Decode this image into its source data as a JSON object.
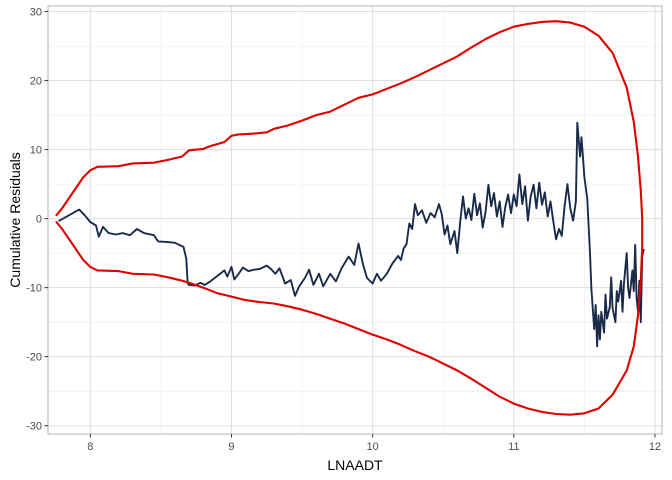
{
  "chart_data": {
    "type": "line",
    "title": "",
    "xlabel": "LNAADT",
    "ylabel": "Cumulative Residuals",
    "xlim": [
      7.7,
      12.05
    ],
    "ylim": [
      -31.2,
      30.8
    ],
    "xticks": [
      8,
      9,
      10,
      11,
      12
    ],
    "yticks": [
      -30,
      -20,
      -10,
      0,
      10,
      20,
      30
    ],
    "xtick_labels": [
      "8",
      "9",
      "10",
      "11",
      "12"
    ],
    "ytick_labels": [
      "-30",
      "-20",
      "-10",
      "0",
      "10",
      "20",
      "30"
    ],
    "grid": true,
    "legend": "none",
    "series": [
      {
        "color": "#1a2b4a",
        "points": [
          [
            7.78,
            -0.3
          ],
          [
            7.85,
            0.5
          ],
          [
            7.92,
            1.3
          ],
          [
            7.96,
            0.5
          ],
          [
            8.0,
            -0.5
          ],
          [
            8.04,
            -1.0
          ],
          [
            8.06,
            -2.6
          ],
          [
            8.09,
            -1.2
          ],
          [
            8.13,
            -2.1
          ],
          [
            8.18,
            -2.3
          ],
          [
            8.23,
            -2.1
          ],
          [
            8.28,
            -2.4
          ],
          [
            8.33,
            -1.5
          ],
          [
            8.38,
            -2.1
          ],
          [
            8.45,
            -2.4
          ],
          [
            8.48,
            -3.3
          ],
          [
            8.55,
            -3.4
          ],
          [
            8.6,
            -3.5
          ],
          [
            8.66,
            -4.1
          ],
          [
            8.68,
            -5.8
          ],
          [
            8.69,
            -9.4
          ],
          [
            8.7,
            -9.6
          ],
          [
            8.74,
            -9.7
          ],
          [
            8.78,
            -9.3
          ],
          [
            8.81,
            -9.6
          ],
          [
            8.85,
            -9.1
          ],
          [
            8.9,
            -8.3
          ],
          [
            8.95,
            -7.5
          ],
          [
            8.97,
            -8.4
          ],
          [
            9.0,
            -7.0
          ],
          [
            9.02,
            -8.8
          ],
          [
            9.05,
            -8.0
          ],
          [
            9.08,
            -7.1
          ],
          [
            9.12,
            -7.6
          ],
          [
            9.16,
            -7.4
          ],
          [
            9.2,
            -7.3
          ],
          [
            9.25,
            -6.8
          ],
          [
            9.28,
            -7.3
          ],
          [
            9.31,
            -8.0
          ],
          [
            9.34,
            -7.2
          ],
          [
            9.38,
            -9.4
          ],
          [
            9.42,
            -8.9
          ],
          [
            9.45,
            -11.2
          ],
          [
            9.48,
            -9.8
          ],
          [
            9.52,
            -8.6
          ],
          [
            9.55,
            -7.4
          ],
          [
            9.58,
            -9.6
          ],
          [
            9.62,
            -8.0
          ],
          [
            9.65,
            -9.8
          ],
          [
            9.7,
            -8.0
          ],
          [
            9.74,
            -9.1
          ],
          [
            9.78,
            -7.2
          ],
          [
            9.83,
            -5.5
          ],
          [
            9.87,
            -6.7
          ],
          [
            9.9,
            -3.6
          ],
          [
            9.93,
            -6.5
          ],
          [
            9.96,
            -8.6
          ],
          [
            10.0,
            -9.4
          ],
          [
            10.03,
            -8.0
          ],
          [
            10.06,
            -9.0
          ],
          [
            10.1,
            -8.0
          ],
          [
            10.14,
            -6.5
          ],
          [
            10.18,
            -5.4
          ],
          [
            10.2,
            -6.0
          ],
          [
            10.22,
            -4.3
          ],
          [
            10.24,
            -3.7
          ],
          [
            10.26,
            -0.7
          ],
          [
            10.28,
            -1.5
          ],
          [
            10.3,
            2.1
          ],
          [
            10.32,
            0.5
          ],
          [
            10.35,
            1.2
          ],
          [
            10.38,
            -0.6
          ],
          [
            10.41,
            0.8
          ],
          [
            10.44,
            0.2
          ],
          [
            10.47,
            2.1
          ],
          [
            10.49,
            0.6
          ],
          [
            10.51,
            -2.3
          ],
          [
            10.53,
            -1.0
          ],
          [
            10.55,
            -3.7
          ],
          [
            10.58,
            -1.8
          ],
          [
            10.6,
            -5.0
          ],
          [
            10.62,
            -0.5
          ],
          [
            10.64,
            3.2
          ],
          [
            10.66,
            0.0
          ],
          [
            10.68,
            1.5
          ],
          [
            10.7,
            -0.2
          ],
          [
            10.72,
            3.6
          ],
          [
            10.74,
            0.5
          ],
          [
            10.76,
            2.2
          ],
          [
            10.78,
            -1.3
          ],
          [
            10.8,
            1.0
          ],
          [
            10.82,
            4.9
          ],
          [
            10.84,
            1.8
          ],
          [
            10.86,
            3.7
          ],
          [
            10.88,
            0.3
          ],
          [
            10.9,
            2.5
          ],
          [
            10.92,
            -1.2
          ],
          [
            10.94,
            1.7
          ],
          [
            10.96,
            3.5
          ],
          [
            10.98,
            0.8
          ],
          [
            11.0,
            3.5
          ],
          [
            11.02,
            1.8
          ],
          [
            11.04,
            6.4
          ],
          [
            11.06,
            2.1
          ],
          [
            11.08,
            4.7
          ],
          [
            11.1,
            -0.3
          ],
          [
            11.12,
            3.2
          ],
          [
            11.14,
            4.9
          ],
          [
            11.16,
            1.5
          ],
          [
            11.18,
            5.2
          ],
          [
            11.2,
            2.0
          ],
          [
            11.22,
            3.8
          ],
          [
            11.24,
            0.3
          ],
          [
            11.26,
            2.5
          ],
          [
            11.28,
            -0.4
          ],
          [
            11.3,
            -3.0
          ],
          [
            11.32,
            -1.5
          ],
          [
            11.34,
            -2.5
          ],
          [
            11.36,
            1.8
          ],
          [
            11.38,
            5.0
          ],
          [
            11.4,
            1.5
          ],
          [
            11.42,
            -0.3
          ],
          [
            11.44,
            2.5
          ],
          [
            11.45,
            13.9
          ],
          [
            11.47,
            9.0
          ],
          [
            11.48,
            11.8
          ],
          [
            11.5,
            6.0
          ],
          [
            11.52,
            3.0
          ],
          [
            11.54,
            -5.0
          ],
          [
            11.55,
            -10.2
          ],
          [
            11.57,
            -16.0
          ],
          [
            11.58,
            -12.5
          ],
          [
            11.59,
            -18.5
          ],
          [
            11.6,
            -14.0
          ],
          [
            11.61,
            -17.5
          ],
          [
            11.62,
            -13.5
          ],
          [
            11.64,
            -16.5
          ],
          [
            11.65,
            -11.0
          ],
          [
            11.66,
            -14.5
          ],
          [
            11.68,
            -12.8
          ],
          [
            11.69,
            -8.5
          ],
          [
            11.7,
            -13.0
          ],
          [
            11.72,
            -15.0
          ],
          [
            11.73,
            -10.5
          ],
          [
            11.74,
            -12.0
          ],
          [
            11.76,
            -9.0
          ],
          [
            11.77,
            -13.5
          ],
          [
            11.78,
            -9.5
          ],
          [
            11.8,
            -5.0
          ],
          [
            11.81,
            -10.0
          ],
          [
            11.82,
            -11.5
          ],
          [
            11.84,
            -7.5
          ],
          [
            11.85,
            -10.5
          ],
          [
            11.86,
            -3.8
          ],
          [
            11.87,
            -11.5
          ],
          [
            11.88,
            -13.5
          ],
          [
            11.89,
            -9.0
          ],
          [
            11.9,
            -15.0
          ],
          [
            11.91,
            -5.5
          ],
          [
            11.92,
            -4.5
          ]
        ]
      },
      {
        "color": "#e00000",
        "points": [
          [
            7.76,
            0.5
          ],
          [
            7.8,
            1.5
          ],
          [
            7.85,
            3.0
          ],
          [
            7.9,
            4.5
          ],
          [
            7.95,
            6.0
          ],
          [
            8.0,
            7.0
          ],
          [
            8.05,
            7.5
          ],
          [
            8.2,
            7.6
          ],
          [
            8.3,
            8.0
          ],
          [
            8.45,
            8.1
          ],
          [
            8.55,
            8.5
          ],
          [
            8.65,
            9.0
          ],
          [
            8.7,
            9.9
          ],
          [
            8.8,
            10.1
          ],
          [
            8.85,
            10.5
          ],
          [
            8.95,
            11.1
          ],
          [
            9.0,
            12.0
          ],
          [
            9.05,
            12.2
          ],
          [
            9.15,
            12.3
          ],
          [
            9.25,
            12.5
          ],
          [
            9.3,
            13.0
          ],
          [
            9.4,
            13.5
          ],
          [
            9.5,
            14.2
          ],
          [
            9.6,
            15.0
          ],
          [
            9.7,
            15.5
          ],
          [
            9.8,
            16.5
          ],
          [
            9.9,
            17.5
          ],
          [
            10.0,
            18.0
          ],
          [
            10.1,
            18.8
          ],
          [
            10.2,
            19.6
          ],
          [
            10.3,
            20.5
          ],
          [
            10.4,
            21.5
          ],
          [
            10.5,
            22.5
          ],
          [
            10.6,
            23.5
          ],
          [
            10.7,
            24.8
          ],
          [
            10.8,
            26.0
          ],
          [
            10.9,
            27.0
          ],
          [
            11.0,
            27.8
          ],
          [
            11.1,
            28.2
          ],
          [
            11.2,
            28.5
          ],
          [
            11.3,
            28.6
          ],
          [
            11.4,
            28.4
          ],
          [
            11.5,
            27.8
          ],
          [
            11.6,
            26.5
          ],
          [
            11.7,
            24.0
          ],
          [
            11.8,
            19.0
          ],
          [
            11.85,
            14.0
          ],
          [
            11.88,
            9.0
          ],
          [
            11.9,
            4.0
          ],
          [
            11.91,
            0.0
          ],
          [
            11.91,
            -4.0
          ],
          [
            11.9,
            -9.0
          ],
          [
            11.88,
            -14.0
          ],
          [
            11.85,
            -18.5
          ],
          [
            11.8,
            -22.0
          ],
          [
            11.7,
            -25.5
          ],
          [
            11.6,
            -27.5
          ],
          [
            11.5,
            -28.2
          ],
          [
            11.4,
            -28.4
          ],
          [
            11.3,
            -28.3
          ],
          [
            11.2,
            -28.0
          ],
          [
            11.1,
            -27.5
          ],
          [
            11.0,
            -26.8
          ],
          [
            10.9,
            -25.8
          ],
          [
            10.8,
            -24.5
          ],
          [
            10.7,
            -23.2
          ],
          [
            10.6,
            -22.0
          ],
          [
            10.5,
            -21.0
          ],
          [
            10.4,
            -20.0
          ],
          [
            10.3,
            -19.2
          ],
          [
            10.2,
            -18.3
          ],
          [
            10.1,
            -17.5
          ],
          [
            10.0,
            -16.8
          ],
          [
            9.9,
            -16.0
          ],
          [
            9.8,
            -15.2
          ],
          [
            9.7,
            -14.5
          ],
          [
            9.6,
            -13.8
          ],
          [
            9.5,
            -13.2
          ],
          [
            9.4,
            -12.7
          ],
          [
            9.3,
            -12.3
          ],
          [
            9.2,
            -12.1
          ],
          [
            9.1,
            -11.8
          ],
          [
            9.0,
            -11.3
          ],
          [
            8.9,
            -10.8
          ],
          [
            8.8,
            -10.0
          ],
          [
            8.7,
            -9.3
          ],
          [
            8.65,
            -9.0
          ],
          [
            8.55,
            -8.5
          ],
          [
            8.45,
            -8.1
          ],
          [
            8.3,
            -8.0
          ],
          [
            8.2,
            -7.6
          ],
          [
            8.05,
            -7.5
          ],
          [
            8.0,
            -7.0
          ],
          [
            7.95,
            -6.0
          ],
          [
            7.9,
            -4.5
          ],
          [
            7.85,
            -3.0
          ],
          [
            7.8,
            -1.5
          ],
          [
            7.76,
            -0.5
          ]
        ]
      }
    ]
  }
}
